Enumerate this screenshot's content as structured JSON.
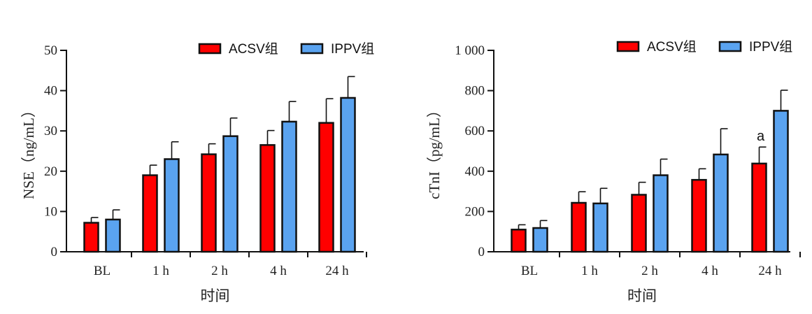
{
  "colors": {
    "acsv": "#ff0000",
    "ippv": "#5aa3f0",
    "axis": "#111111"
  },
  "chart_data": [
    {
      "type": "bar",
      "categories": [
        "BL",
        "1 h",
        "2 h",
        "4 h",
        "24 h"
      ],
      "series": [
        {
          "name": "ACSV组",
          "values": [
            7.2,
            19.0,
            24.2,
            26.5,
            32.0
          ],
          "error": [
            1.3,
            2.5,
            2.6,
            3.6,
            6.0
          ]
        },
        {
          "name": "IPPV组",
          "values": [
            8.0,
            23.0,
            28.7,
            32.3,
            38.2
          ],
          "error": [
            2.4,
            4.3,
            4.5,
            5.0,
            5.3
          ]
        }
      ],
      "xlabel": "时间",
      "ylabel": "NSE（ng/mL）",
      "ylim": [
        0,
        50
      ],
      "yticks": [
        0,
        10,
        20,
        30,
        40,
        50
      ],
      "ytick_labels": [
        "0",
        "10",
        "20",
        "30",
        "40",
        "50"
      ],
      "annotations": [],
      "legend_position": "top-right",
      "grid": false
    },
    {
      "type": "bar",
      "categories": [
        "BL",
        "1 h",
        "2 h",
        "4 h",
        "24 h"
      ],
      "series": [
        {
          "name": "ACSV组",
          "values": [
            110,
            243,
            283,
            357,
            438
          ],
          "error": [
            24,
            55,
            62,
            55,
            82
          ]
        },
        {
          "name": "IPPV组",
          "values": [
            118,
            240,
            380,
            483,
            700
          ],
          "error": [
            37,
            75,
            80,
            128,
            102
          ]
        }
      ],
      "xlabel": "时间",
      "ylabel": "cTnI（pg/mL）",
      "ylim": [
        0,
        1000
      ],
      "yticks": [
        0,
        200,
        400,
        600,
        800,
        1000
      ],
      "ytick_labels": [
        "0",
        "200",
        "400",
        "600",
        "800",
        "1 000"
      ],
      "annotations": [
        {
          "text": "a",
          "category": "24 h",
          "series": 0
        }
      ],
      "legend_position": "top-right",
      "grid": false
    }
  ]
}
